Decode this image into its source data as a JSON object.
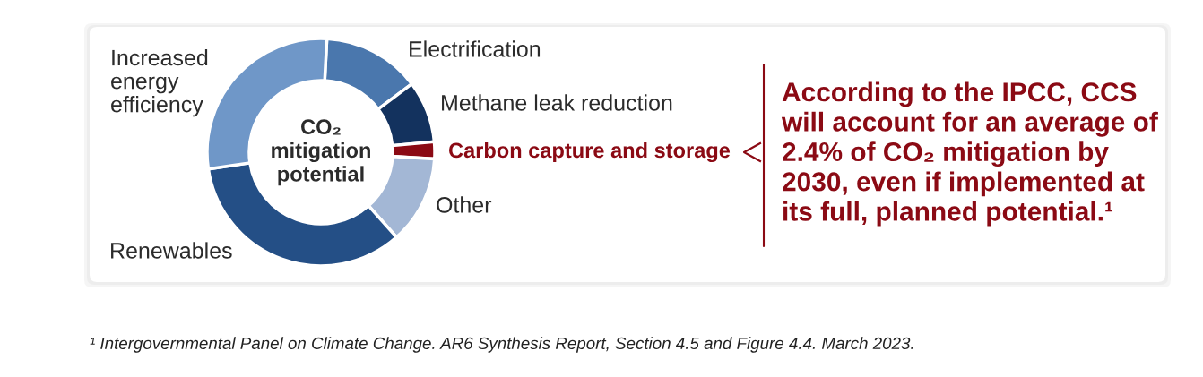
{
  "chart_data": {
    "type": "donut",
    "title": "CO₂ mitigation potential",
    "categories": [
      "Electrification",
      "Methane leak reduction",
      "Carbon capture and storage",
      "Other",
      "Renewables",
      "Increased energy efficiency"
    ],
    "values": [
      13.9,
      8.8,
      2.4,
      12.5,
      34.2,
      28.2
    ],
    "colors": [
      "#4a77ad",
      "#13325e",
      "#8b0a14",
      "#a3b7d5",
      "#244f86",
      "#6f97c8"
    ],
    "annotations": [
      "According to the IPCC, CCS will account for an average of 2.4% of CO₂ mitigation by 2030, even if implemented at its full, planned potential.¹",
      "¹ Intergovernmental Panel on Climate Change. AR6 Synthesis Report, Section 4.5 and Figure 4.4. March 2023."
    ]
  }
}
